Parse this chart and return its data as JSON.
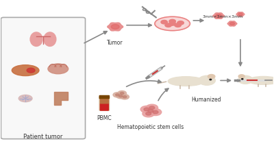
{
  "bg_color": "#ffffff",
  "fig_width": 4.0,
  "fig_height": 2.3,
  "dpi": 100,
  "labels": {
    "patient_tumor": "Patient tumor",
    "tumor": "Tumor",
    "pbmc": "PBMC",
    "hematopoietic": "Hematopoietic stem cells",
    "humanized": "Humanized",
    "size_label": "3mm×3mm×3mm"
  },
  "colors": {
    "arrow": "#555555",
    "text": "#333333",
    "pink_light": "#f9c0c0",
    "pink_mid": "#e88080",
    "organ_lung": "#e8a0a0",
    "organ_liver": "#c87040",
    "organ_brain": "#d09080",
    "mouse_body": "#e8e0d0",
    "scissors": "#888888",
    "tumor_color": "#e89090",
    "stem_color": "#e8a0a0"
  }
}
